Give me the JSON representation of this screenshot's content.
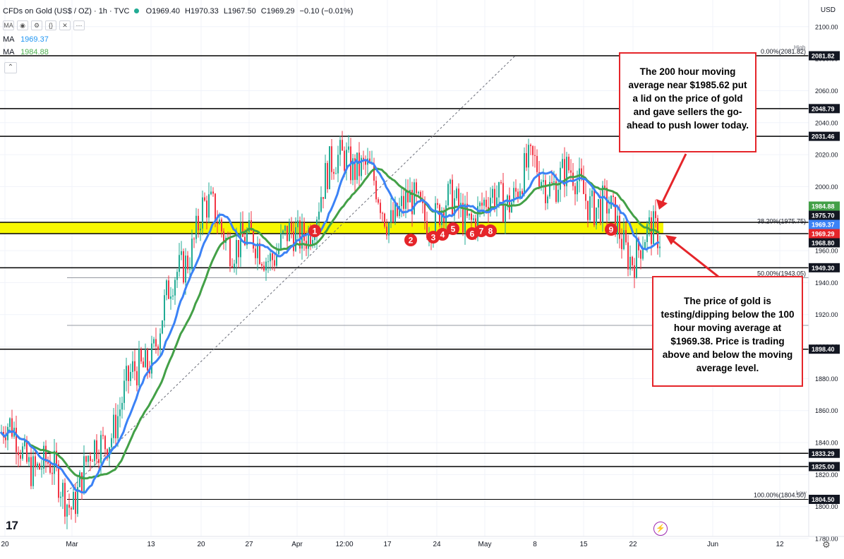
{
  "header": {
    "symbol": "CFDs on Gold (US$ / OZ) · 1h · TVC",
    "open": "O1969.40",
    "high": "H1970.33",
    "low": "L1967.50",
    "close": "C1969.29",
    "change": "−0.10 (−0.01%)"
  },
  "ma_rows": [
    {
      "label": "MA",
      "value": "1969.37",
      "color": "#2196f3"
    },
    {
      "label": "MA",
      "value": "1984.88",
      "color": "#4caf50"
    }
  ],
  "currency": "USD",
  "colors": {
    "ma100": "#3b82f6",
    "ma200": "#43a047",
    "hline": "#000000",
    "support_zone": "#f7f700",
    "marker": "#e5252a",
    "callout_border": "#e5252a",
    "up": "#22ab94",
    "down": "#f23645"
  },
  "chart_data": {
    "type": "candlestick",
    "timeframe": "1h",
    "ylim": [
      1780,
      2110
    ],
    "y_ticks": [
      1780,
      1800,
      1820,
      1840,
      1860,
      1880,
      1900,
      1920,
      1940,
      1960,
      1980,
      2000,
      2020,
      2040,
      2060,
      2080,
      2100
    ],
    "x_ticks": [
      "20",
      "Mar",
      "13",
      "20",
      "27",
      "Apr",
      "12:00",
      "17",
      "24",
      "May",
      "8",
      "15",
      "22",
      "Jun",
      "12"
    ],
    "price_path": [
      [
        "20",
        1846
      ],
      [
        "Mar",
        1806
      ],
      [
        "13",
        1900
      ],
      [
        "20",
        1985
      ],
      [
        "27",
        1960
      ],
      [
        "Apr",
        1965
      ],
      [
        "12:00",
        2025
      ],
      [
        "17",
        1985
      ],
      [
        "24",
        1985
      ],
      [
        "May",
        1985
      ],
      [
        "8",
        2010
      ],
      [
        "15",
        2000
      ],
      [
        "22",
        1960
      ],
      [
        "22+",
        1969.29
      ]
    ],
    "moving_averages": [
      {
        "name": "100 hour MA",
        "value": 1969.37
      },
      {
        "name": "200 hour MA",
        "value": 1984.88
      }
    ],
    "horizontal_levels": [
      2081.82,
      2048.79,
      2031.46,
      1975.7,
      1968.8,
      1949.3,
      1898.4,
      1833.29,
      1825.0,
      1804.5
    ],
    "price_labels": [
      {
        "text": "2081.82",
        "value": 2081.82,
        "style": "dark"
      },
      {
        "text": "2048.79",
        "value": 2048.79,
        "style": "dark"
      },
      {
        "text": "2031.46",
        "value": 2031.46,
        "style": "dark"
      },
      {
        "text": "1984.88",
        "value": 1984.88,
        "style": "green"
      },
      {
        "text": "1975.70",
        "value": 1975.7,
        "style": "dark"
      },
      {
        "text": "1969.37",
        "value": 1969.37,
        "style": "blue"
      },
      {
        "text": "1969.29",
        "value": 1969.29,
        "style": "red"
      },
      {
        "text": "1968.80",
        "value": 1968.8,
        "style": "dark"
      },
      {
        "text": "1949.30",
        "value": 1949.3,
        "style": "dark"
      },
      {
        "text": "1898.40",
        "value": 1898.4,
        "style": "dark"
      },
      {
        "text": "1833.29",
        "value": 1833.29,
        "style": "dark"
      },
      {
        "text": "1825.00",
        "value": 1825.0,
        "style": "dark"
      },
      {
        "text": "1804.50",
        "value": 1804.5,
        "style": "dark"
      }
    ],
    "fib_levels": [
      {
        "text": "0.00%(2081.82)",
        "value": 2081.82
      },
      {
        "text": "38.20%(1975.75)",
        "value": 1975.75
      },
      {
        "text": "50.00%(1943.05)",
        "value": 1943.05
      },
      {
        "text": "100.00%(1804.50)",
        "value": 1804.5
      }
    ],
    "high_tag": "High",
    "low_tag": "Low",
    "support_zone": [
      1968.8,
      1975.7
    ],
    "markers": [
      "1",
      "2",
      "3",
      "4",
      "5",
      "6",
      "7",
      "8",
      "9"
    ]
  },
  "callouts": [
    {
      "text": "The 200 hour moving average near $1985.62 put a lid on the price of gold and gave sellers the go-ahead to push lower today."
    },
    {
      "text": "The price of gold is testing/dipping below the 100 hour moving average at $1969.38. Price is trading above and below the moving average level."
    }
  ],
  "icons": {
    "logo": "tradingview-logo",
    "alert": "lightning-icon",
    "settings": "gear-icon"
  },
  "logo_text": "17"
}
